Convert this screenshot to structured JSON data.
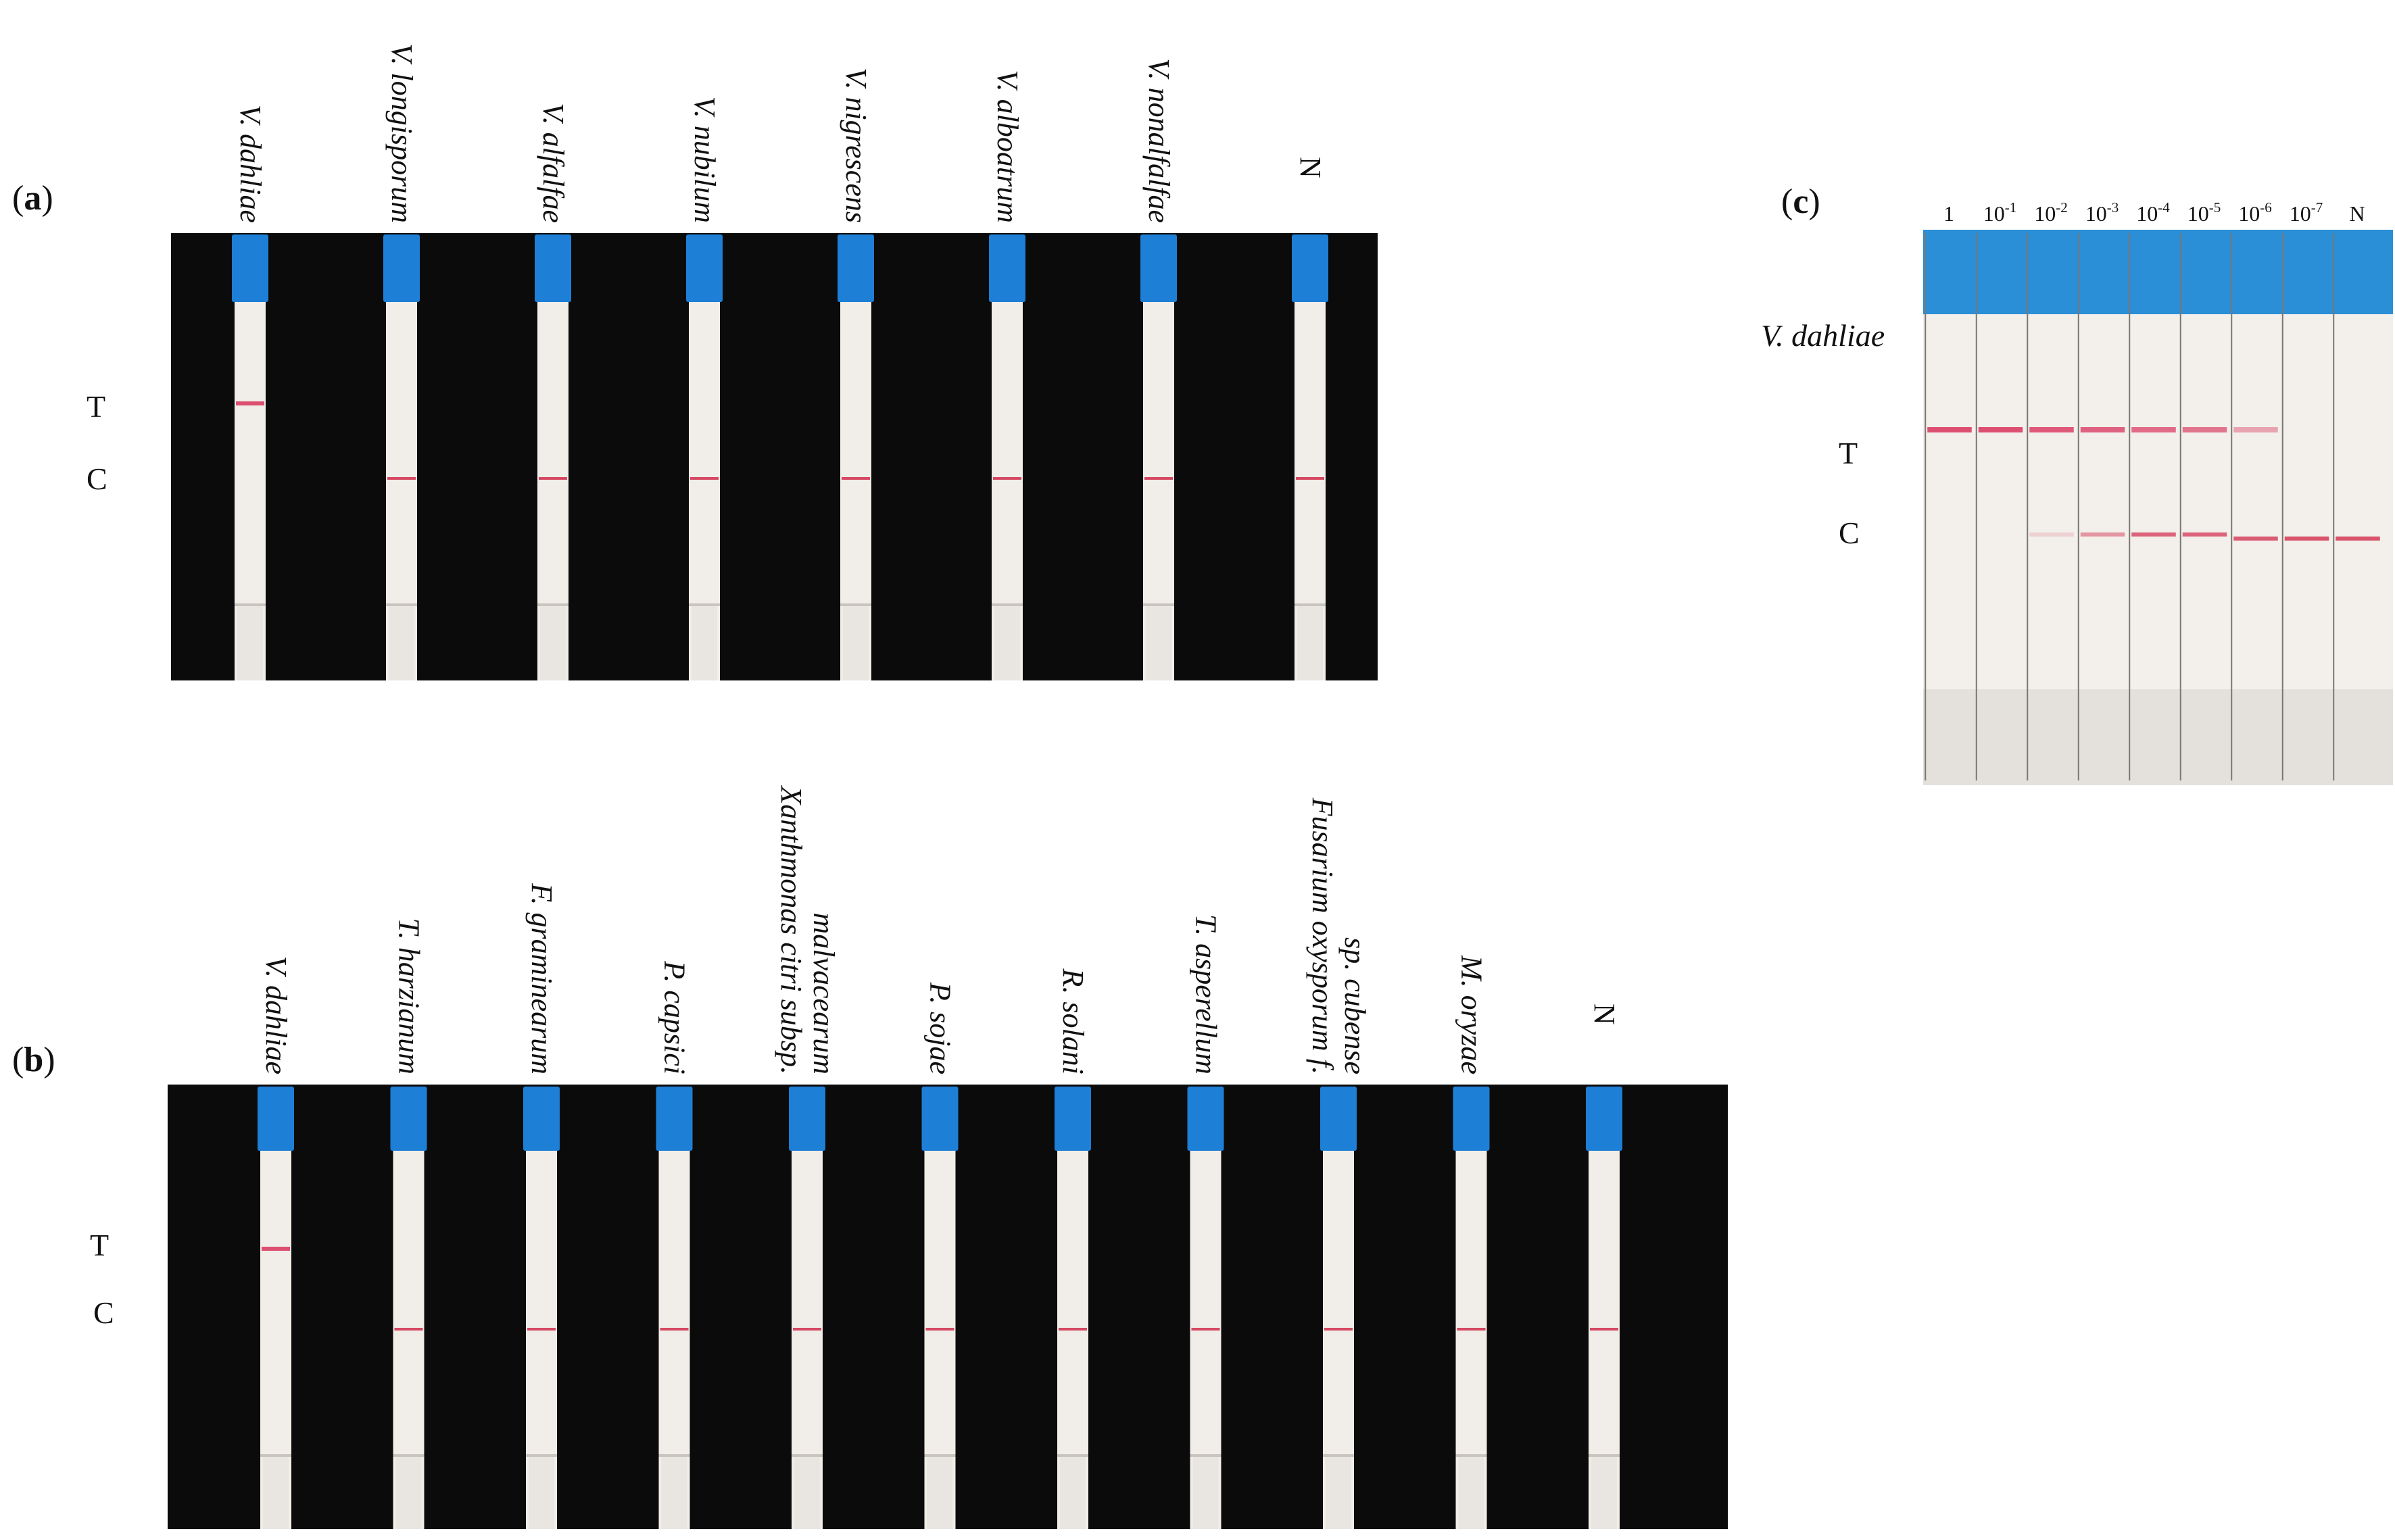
{
  "panel_a": {
    "label_open": "(",
    "label_letter": "a",
    "label_close": ")",
    "row_labels": [
      "T",
      "C"
    ],
    "strips": [
      {
        "name": "V. dahliae",
        "test_line": true,
        "control_line": false
      },
      {
        "name": "V. longisporum",
        "test_line": false,
        "control_line": true
      },
      {
        "name": "V. alfalfae",
        "test_line": false,
        "control_line": true
      },
      {
        "name": "V. nubilum",
        "test_line": false,
        "control_line": true
      },
      {
        "name": "V. nigrescens",
        "test_line": false,
        "control_line": true
      },
      {
        "name": "V. alboatrum",
        "test_line": false,
        "control_line": true
      },
      {
        "name": "V. nonalfalfae",
        "test_line": false,
        "control_line": true
      },
      {
        "name": "N",
        "test_line": false,
        "control_line": true,
        "upright": true
      }
    ]
  },
  "panel_b": {
    "label_open": "(",
    "label_letter": "b",
    "label_close": ")",
    "row_labels": [
      "T",
      "C"
    ],
    "strips": [
      {
        "name": [
          "V. dahliae"
        ],
        "test_line": true,
        "control_line": false
      },
      {
        "name": [
          "T. harzianum"
        ],
        "test_line": false,
        "control_line": true
      },
      {
        "name": [
          "F. graminearum"
        ],
        "test_line": false,
        "control_line": true
      },
      {
        "name": [
          "P. capsici"
        ],
        "test_line": false,
        "control_line": true
      },
      {
        "name": [
          "Xanthmonas citri subsp.",
          "malvacearum"
        ],
        "test_line": false,
        "control_line": true
      },
      {
        "name": [
          "P. sojae"
        ],
        "test_line": false,
        "control_line": true
      },
      {
        "name": [
          "R. solani"
        ],
        "test_line": false,
        "control_line": true
      },
      {
        "name": [
          "T. asperellum"
        ],
        "test_line": false,
        "control_line": true
      },
      {
        "name": [
          "Fusarium oxysporum f.",
          "sp. cubense"
        ],
        "test_line": false,
        "control_line": true
      },
      {
        "name": [
          "M. oryzae"
        ],
        "test_line": false,
        "control_line": true
      },
      {
        "name": [
          "N"
        ],
        "test_line": false,
        "control_line": true,
        "upright": true
      }
    ]
  },
  "panel_c": {
    "label_open": "(",
    "label_letter": "c",
    "label_close": ")",
    "species_label": "V. dahliae",
    "row_labels": [
      "T",
      "C"
    ],
    "columns": [
      {
        "base": "1",
        "exp": "",
        "test_intensity": 0.85,
        "control_intensity": 0.0
      },
      {
        "base": "10",
        "exp": "-1",
        "test_intensity": 0.85,
        "control_intensity": 0.0
      },
      {
        "base": "10",
        "exp": "-2",
        "test_intensity": 0.8,
        "control_intensity": 0.15
      },
      {
        "base": "10",
        "exp": "-3",
        "test_intensity": 0.75,
        "control_intensity": 0.45
      },
      {
        "base": "10",
        "exp": "-4",
        "test_intensity": 0.7,
        "control_intensity": 0.7
      },
      {
        "base": "10",
        "exp": "-5",
        "test_intensity": 0.65,
        "control_intensity": 0.7
      },
      {
        "base": "10",
        "exp": "-6",
        "test_intensity": 0.4,
        "control_intensity": 0.75
      },
      {
        "base": "10",
        "exp": "-7",
        "test_intensity": 0.0,
        "control_intensity": 0.8
      },
      {
        "base": "N",
        "exp": "",
        "test_intensity": 0.0,
        "control_intensity": 0.8
      }
    ]
  },
  "colors": {
    "background_photo": "#0b0b0b",
    "strip_body": "#f1ede8",
    "strip_cap": "#1e7fd6",
    "test_line": "#d8325c",
    "control_line": "#d02a4a",
    "panel_c_background": "#f3efea",
    "panel_c_top": "#2b8fd8"
  }
}
